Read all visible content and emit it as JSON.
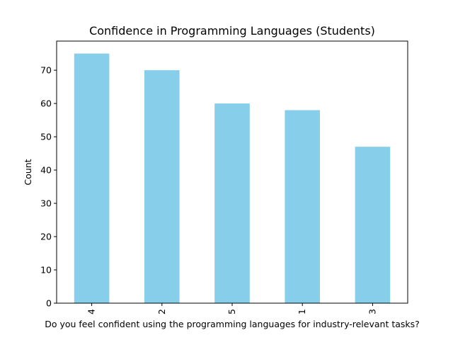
{
  "chart_data": {
    "type": "bar",
    "title": "Confidence in Programming Languages (Students)",
    "xlabel": "Do you feel confident using the programming languages for industry-relevant tasks?",
    "ylabel": "Count",
    "categories": [
      "4",
      "2",
      "5",
      "1",
      "3"
    ],
    "values": [
      75,
      70,
      60,
      58,
      47
    ],
    "ylim": [
      0,
      78.75
    ],
    "yticks": [
      0,
      10,
      20,
      30,
      40,
      50,
      60,
      70
    ],
    "bar_color": "#87ceeb",
    "grid": false,
    "legend": "none",
    "x_tick_rotation": "vertical"
  }
}
